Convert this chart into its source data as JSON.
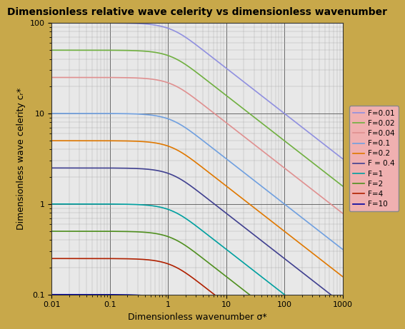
{
  "title": "Dimensionless relative wave celerity vs dimensionless wavenumber",
  "xlabel": "Dimensionless wavenumber σ*",
  "ylabel": "Dimensionless wave celerity cᵣ*",
  "xlim": [
    0.01,
    1000
  ],
  "ylim": [
    0.1,
    100
  ],
  "background_color": "#c8a84a",
  "plot_bg_color": "#e8e8e8",
  "grid_major_color": "#555555",
  "grid_minor_color": "#aaaaaa",
  "froude_numbers": [
    0.01,
    0.02,
    0.04,
    0.1,
    0.2,
    0.4,
    1.0,
    2.0,
    4.0,
    10.0
  ],
  "line_colors": [
    "#9090e0",
    "#70b040",
    "#e09090",
    "#70a0e0",
    "#e07800",
    "#404090",
    "#00a0a0",
    "#509020",
    "#b02000",
    "#0000a0"
  ],
  "line_labels": [
    "F=0.01",
    "F=0.02",
    "F=0.04",
    "F=0.1",
    "F=0.2",
    "F = 0.4",
    "F=1",
    "F=2",
    "F=4",
    "F=10"
  ],
  "legend_bg": "#f0b0b0"
}
